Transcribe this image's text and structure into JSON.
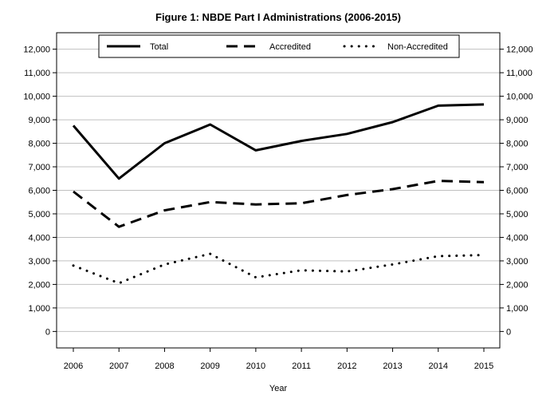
{
  "chart_data": {
    "type": "line",
    "title": "Figure 1: NBDE Part I Administrations (2006-2015)",
    "xlabel": "Year",
    "ylabel": "",
    "x": [
      "2006",
      "2007",
      "2008",
      "2009",
      "2010",
      "2011",
      "2012",
      "2013",
      "2014",
      "2015"
    ],
    "ylim": [
      -700,
      12700
    ],
    "yticks": [
      0,
      1000,
      2000,
      3000,
      4000,
      5000,
      6000,
      7000,
      8000,
      9000,
      10000,
      11000,
      12000
    ],
    "ytick_labels": [
      "0",
      "1,000",
      "2,000",
      "3,000",
      "4,000",
      "5,000",
      "6,000",
      "7,000",
      "8,000",
      "9,000",
      "10,000",
      "11,000",
      "12,000"
    ],
    "grid": "horizontal",
    "legend_position": "top",
    "secondary_y_axis": true,
    "series": [
      {
        "name": "Total",
        "style": "solid",
        "values": [
          8750,
          6500,
          8000,
          8800,
          7700,
          8100,
          8400,
          8900,
          9600,
          9650
        ]
      },
      {
        "name": "Accredited",
        "style": "dashed",
        "values": [
          5950,
          4450,
          5150,
          5500,
          5400,
          5450,
          5800,
          6050,
          6400,
          6350
        ]
      },
      {
        "name": "Non-Accredited",
        "style": "dotted",
        "values": [
          2800,
          2050,
          2850,
          3300,
          2300,
          2600,
          2550,
          2850,
          3200,
          3250
        ]
      }
    ],
    "colors": {
      "line": "#000000",
      "grid": "#c0c0c0",
      "frame": "#000000",
      "background": "#ffffff"
    }
  }
}
